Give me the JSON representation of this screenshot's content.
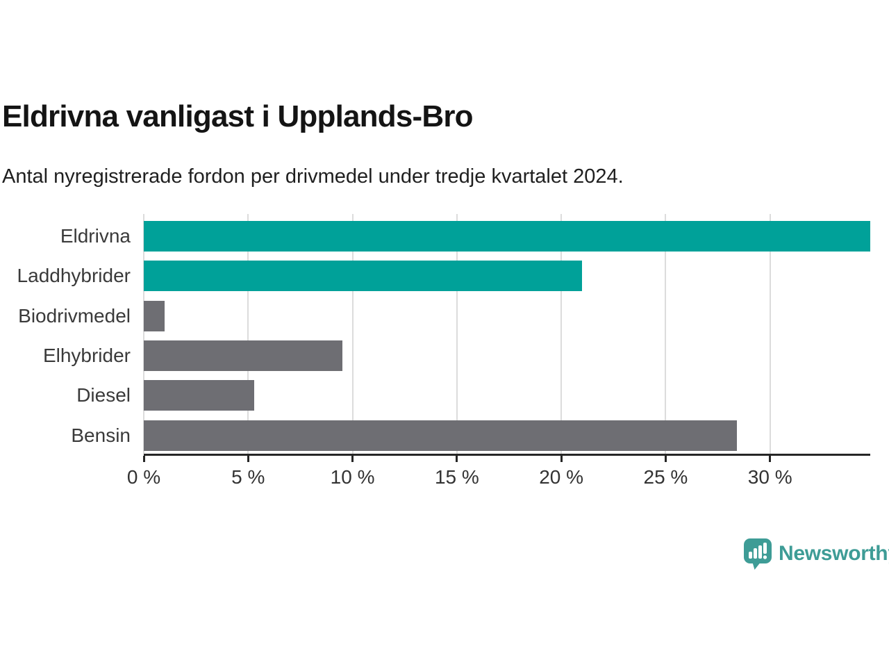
{
  "header": {
    "title": "Eldrivna vanligast i Upplands-Bro",
    "subtitle": "Antal nyregistrerade fordon per drivmedel under tredje kvartalet 2024."
  },
  "chart_data": {
    "type": "bar",
    "orientation": "horizontal",
    "title": "Eldrivna vanligast i Upplands-Bro",
    "subtitle": "Antal nyregistrerade fordon per drivmedel under tredje kvartalet 2024.",
    "categories": [
      "Eldrivna",
      "Laddhybrider",
      "Biodrivmedel",
      "Elhybrider",
      "Diesel",
      "Bensin"
    ],
    "values": [
      34.8,
      21,
      1,
      9.5,
      5.3,
      28.4
    ],
    "unit": "%",
    "bar_colors": [
      "#00A199",
      "#00A199",
      "#6E6E73",
      "#6E6E73",
      "#6E6E73",
      "#6E6E73"
    ],
    "xlabel": "",
    "ylabel": "",
    "xlim": [
      0,
      34.8
    ],
    "x_ticks": [
      0,
      5,
      10,
      15,
      20,
      25,
      30
    ],
    "x_tick_labels": [
      "0 %",
      "5 %",
      "10 %",
      "15 %",
      "20 %",
      "25 %",
      "30 %"
    ],
    "grid": "vertical",
    "legend": "none",
    "colors": {
      "highlight": "#00A199",
      "default": "#6E6E73",
      "gridline": "#dcdcdc",
      "axis": "#262626",
      "tick_label": "#333333",
      "category_label": "#3a3a3a"
    }
  },
  "branding": {
    "logo_text": "Newsworthy",
    "logo_color": "#3e9c96",
    "logo_icon": "bar-chart-speech-bubble-icon"
  }
}
